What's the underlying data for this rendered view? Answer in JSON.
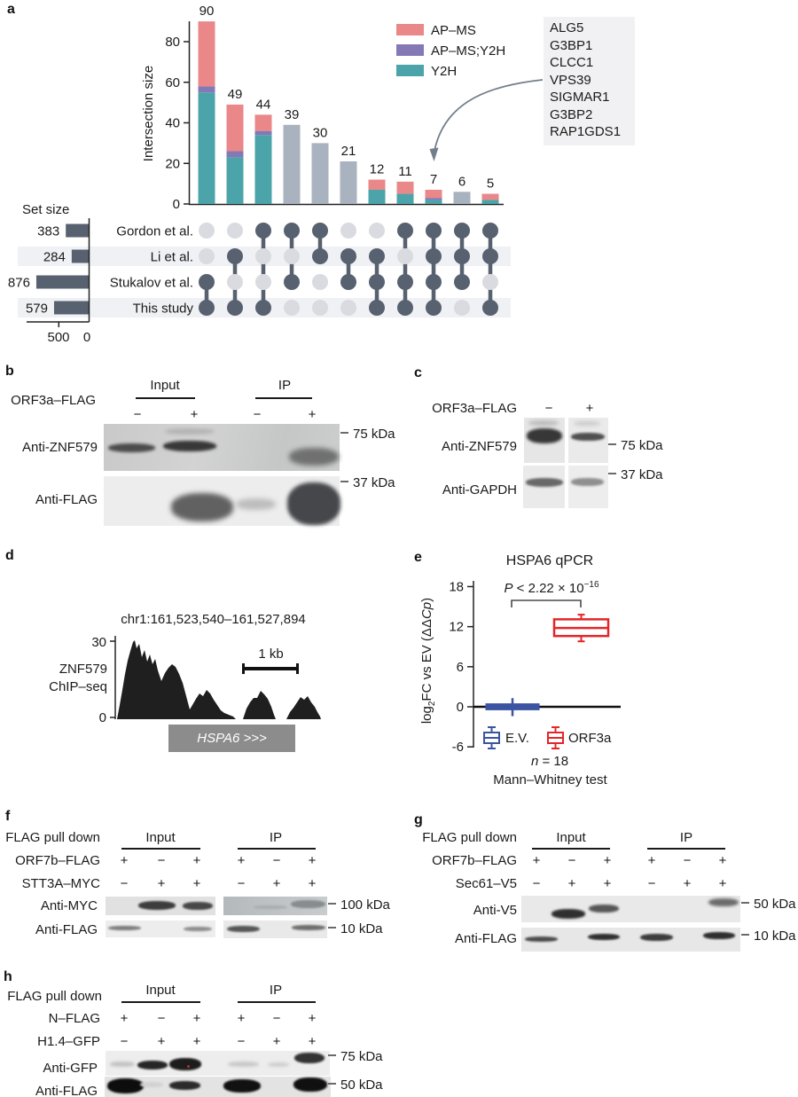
{
  "panels": {
    "a": "a",
    "b": "b",
    "c": "c",
    "d": "d",
    "e": "e",
    "f": "f",
    "g": "g",
    "h": "h"
  },
  "upset": {
    "ylabel": "Intersection size",
    "yticks": [
      0,
      20,
      40,
      60,
      80
    ],
    "set_axis_title": "Set size",
    "set_axis_ticks": [
      "500",
      "0"
    ],
    "colors": {
      "apms": "#e98789",
      "apms_y2h": "#8478b5",
      "y2h": "#4ba4a9",
      "none": "#a9b3bf",
      "dark": "#57616f",
      "dot_off": "#d9dbe0",
      "band": "#f0f1f4"
    },
    "legend": [
      {
        "label": "AP–MS",
        "color": "#e98789"
      },
      {
        "label": "AP–MS;Y2H",
        "color": "#8478b5"
      },
      {
        "label": "Y2H",
        "color": "#4ba4a9"
      }
    ],
    "sets": [
      {
        "name": "Gordon et al.",
        "size": 383
      },
      {
        "name": "Li et al.",
        "size": 284
      },
      {
        "name": "Stukalov et al.",
        "size": 876
      },
      {
        "name": "This study",
        "size": 579
      }
    ],
    "intersections": [
      {
        "total": 90,
        "y2h": 55,
        "apms_y2h": 3,
        "apms": 32,
        "members": [
          2,
          3
        ]
      },
      {
        "total": 49,
        "y2h": 23,
        "apms_y2h": 3,
        "apms": 23,
        "members": [
          1,
          3
        ]
      },
      {
        "total": 44,
        "y2h": 34,
        "apms_y2h": 2,
        "apms": 8,
        "members": [
          0,
          3
        ]
      },
      {
        "total": 39,
        "members": [
          0,
          2
        ]
      },
      {
        "total": 30,
        "members": [
          0,
          1
        ]
      },
      {
        "total": 21,
        "members": [
          1,
          2
        ]
      },
      {
        "total": 12,
        "y2h": 7,
        "apms_y2h": 0,
        "apms": 5,
        "members": [
          1,
          2,
          3
        ]
      },
      {
        "total": 11,
        "y2h": 5,
        "apms_y2h": 0,
        "apms": 6,
        "members": [
          0,
          2,
          3
        ]
      },
      {
        "total": 7,
        "y2h": 2,
        "apms_y2h": 1,
        "apms": 4,
        "members": [
          0,
          1,
          2,
          3
        ]
      },
      {
        "total": 6,
        "members": [
          0,
          1,
          2
        ]
      },
      {
        "total": 5,
        "y2h": 2,
        "apms_y2h": 0,
        "apms": 3,
        "members": [
          0,
          1,
          3
        ]
      }
    ],
    "callout_genes": [
      "ALG5",
      "G3BP1",
      "CLCC1",
      "VPS39",
      "SIGMAR1",
      "G3BP2",
      "RAP1GDS1"
    ]
  },
  "panel_b": {
    "condition": "ORF3a–FLAG",
    "groups": [
      "Input",
      "IP"
    ],
    "signs": [
      "−",
      "+",
      "−",
      "+"
    ],
    "blots": [
      {
        "antibody": "Anti-ZNF579",
        "marker": "75 kDa"
      },
      {
        "antibody": "Anti-FLAG",
        "marker": "37 kDa"
      }
    ]
  },
  "panel_c": {
    "condition": "ORF3a–FLAG",
    "signs": [
      "−",
      "+"
    ],
    "blots": [
      {
        "antibody": "Anti-ZNF579",
        "marker": "75 kDa"
      },
      {
        "antibody": "Anti-GAPDH",
        "marker": "37 kDa"
      }
    ]
  },
  "panel_d": {
    "locus": "chr1:161,523,540–161,527,894",
    "track_line1": "ZNF579",
    "track_line2": "ChIP–seq",
    "ymax": "30",
    "ymin": "0",
    "scalebar": "1 kb",
    "gene": "HSPA6 >>>"
  },
  "panel_e": {
    "title": "HSPA6 qPCR",
    "p_italic": "P",
    "p_body": " < 2.22 × 10",
    "p_exp": "−16",
    "ylab_1": "log",
    "ylab_sub": "2",
    "ylab_2": "FC vs EV (ΔΔ",
    "ylab_it": "Cp",
    "ylab_3": ")",
    "yticks": [
      18,
      12,
      6,
      0,
      -6
    ],
    "groups": [
      {
        "name": "E.V.",
        "color": "#3a53a3",
        "median": 0,
        "q1": -0.45,
        "q3": 0.45,
        "lo": -1.4,
        "hi": 1.3
      },
      {
        "name": "ORF3a",
        "color": "#e52628",
        "median": 11.8,
        "q1": 10.6,
        "q3": 13.1,
        "lo": 9.8,
        "hi": 13.8
      }
    ],
    "n_it": "n",
    "n_rest": " = 18",
    "test": "Mann–Whitney test"
  },
  "panel_f": {
    "pulldown": "FLAG pull down",
    "groups": [
      "Input",
      "IP"
    ],
    "rows": [
      {
        "label": "ORF7b–FLAG",
        "signs": [
          "+",
          "−",
          "+",
          "+",
          "−",
          "+"
        ]
      },
      {
        "label": "STT3A–MYC",
        "signs": [
          "−",
          "+",
          "+",
          "−",
          "+",
          "+"
        ]
      }
    ],
    "blots": [
      {
        "antibody": "Anti-MYC",
        "marker": "100 kDa"
      },
      {
        "antibody": "Anti-FLAG",
        "marker": "10 kDa"
      }
    ]
  },
  "panel_g": {
    "pulldown": "FLAG pull down",
    "groups": [
      "Input",
      "IP"
    ],
    "rows": [
      {
        "label": "ORF7b–FLAG",
        "signs": [
          "+",
          "−",
          "+",
          "+",
          "−",
          "+"
        ]
      },
      {
        "label": "Sec61–V5",
        "signs": [
          "−",
          "+",
          "+",
          "−",
          "+",
          "+"
        ]
      }
    ],
    "blots": [
      {
        "antibody": "Anti-V5",
        "marker": "50 kDa"
      },
      {
        "antibody": "Anti-FLAG",
        "marker": "10 kDa"
      }
    ]
  },
  "panel_h": {
    "pulldown": "FLAG pull down",
    "groups": [
      "Input",
      "IP"
    ],
    "rows": [
      {
        "label": "N–FLAG",
        "signs": [
          "+",
          "−",
          "+",
          "+",
          "−",
          "+"
        ]
      },
      {
        "label": "H1.4–GFP",
        "signs": [
          "−",
          "+",
          "+",
          "−",
          "+",
          "+"
        ]
      }
    ],
    "blots": [
      {
        "antibody": "Anti-GFP",
        "marker": "75 kDa"
      },
      {
        "antibody": "Anti-FLAG",
        "marker": "50 kDa"
      }
    ]
  }
}
